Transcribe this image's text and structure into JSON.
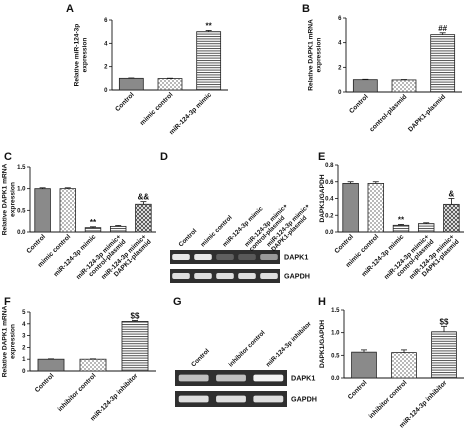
{
  "colors": {
    "bar_dark": "#8a8a8a",
    "bar_hatch": "#ffffff",
    "blot_bg": "#2f2f2f",
    "band": "#f2f2f2"
  },
  "panels": [
    {
      "id": "A",
      "label": "A"
    },
    {
      "id": "B",
      "label": "B"
    },
    {
      "id": "C",
      "label": "C"
    },
    {
      "id": "D",
      "label": "D"
    },
    {
      "id": "E",
      "label": "E"
    },
    {
      "id": "F",
      "label": "F"
    },
    {
      "id": "G",
      "label": "G"
    },
    {
      "id": "H",
      "label": "H"
    }
  ],
  "blots": {
    "D": {
      "lanes": [
        "Control",
        "mimic control",
        "miR-124-3p mimic",
        "miR-124-3p mimic+ control-plasmid",
        "miR-124-3p mimic+ DAPK1-plasmid"
      ],
      "rows": [
        {
          "label": "DAPK1",
          "intensity": [
            0.95,
            0.95,
            0.25,
            0.22,
            0.55
          ]
        },
        {
          "label": "GAPDH",
          "intensity": [
            0.9,
            0.9,
            0.9,
            0.9,
            0.9
          ]
        }
      ]
    },
    "G": {
      "lanes": [
        "Control",
        "inhibitor control",
        "miR-124-3p inhibitor"
      ],
      "rows": [
        {
          "label": "DAPK1",
          "intensity": [
            0.75,
            0.75,
            1.0
          ]
        },
        {
          "label": "GAPDH",
          "intensity": [
            0.9,
            0.9,
            0.9
          ]
        }
      ]
    }
  },
  "chart_data": [
    {
      "panel": "A",
      "type": "bar",
      "ylabel": "Relative miR-124-3p expression",
      "ylim": [
        0,
        6
      ],
      "yticks": [
        0,
        2,
        4,
        6
      ],
      "categories": [
        "Control",
        "mimic control",
        "miR-124-3p mimic"
      ],
      "values": [
        1.0,
        0.98,
        5.0
      ],
      "errors": [
        0.03,
        0.03,
        0.1
      ],
      "styles": [
        "solid",
        "check",
        "hline"
      ],
      "annotations": [
        "",
        "",
        "**"
      ]
    },
    {
      "panel": "B",
      "type": "bar",
      "ylabel": "Relative DAPK1 mRNA expression",
      "ylim": [
        0,
        6
      ],
      "yticks": [
        0,
        2,
        4,
        6
      ],
      "categories": [
        "Control",
        "control-plasmid",
        "DAPK1-plasmid"
      ],
      "values": [
        1.0,
        0.98,
        4.65
      ],
      "errors": [
        0.03,
        0.03,
        0.15
      ],
      "styles": [
        "solid",
        "check",
        "hline"
      ],
      "annotations": [
        "",
        "",
        "##"
      ]
    },
    {
      "panel": "C",
      "type": "bar",
      "ylabel": "Relative DAPK1 mRNA expression",
      "ylim": [
        0,
        1.5
      ],
      "yticks": [
        0.0,
        0.5,
        1.0,
        1.5
      ],
      "tick_decimals": 1,
      "categories": [
        "Control",
        "mimic control",
        "miR-124-3p mimic",
        "miR-124-3p mimic+ control-plasmid",
        "miR-124-3p mimic+ DAPK1-plasmid"
      ],
      "values": [
        1.0,
        1.0,
        0.1,
        0.13,
        0.64
      ],
      "errors": [
        0.02,
        0.02,
        0.02,
        0.02,
        0.06
      ],
      "styles": [
        "solid",
        "check",
        "hline",
        "hline",
        "cross"
      ],
      "annotations": [
        "",
        "",
        "**",
        "",
        "&&"
      ]
    },
    {
      "panel": "E",
      "type": "bar",
      "ylabel": "DAPK1/GAPDH",
      "ylim": [
        0,
        0.8
      ],
      "yticks": [
        0.0,
        0.2,
        0.4,
        0.6,
        0.8
      ],
      "tick_decimals": 1,
      "categories": [
        "Control",
        "mimic control",
        "miR-124-3p mimic",
        "miR-124-3p mimic+ control-plasmid",
        "miR-124-3p mimic+ DAPK1-plasmid"
      ],
      "values": [
        0.58,
        0.58,
        0.08,
        0.1,
        0.33
      ],
      "errors": [
        0.02,
        0.02,
        0.01,
        0.01,
        0.07
      ],
      "styles": [
        "solid",
        "check",
        "hline",
        "hline",
        "cross"
      ],
      "annotations": [
        "",
        "",
        "**",
        "",
        "&"
      ]
    },
    {
      "panel": "F",
      "type": "bar",
      "ylabel": "Relative DAPK1 mRNA expression",
      "ylim": [
        0,
        5
      ],
      "yticks": [
        0,
        1,
        2,
        3,
        4,
        5
      ],
      "categories": [
        "Control",
        "inhibitor control",
        "miR-124-3p inhibitor"
      ],
      "values": [
        1.0,
        1.0,
        4.2
      ],
      "errors": [
        0.03,
        0.03,
        0.08
      ],
      "styles": [
        "solid",
        "check",
        "hline"
      ],
      "annotations": [
        "",
        "",
        "$$"
      ]
    },
    {
      "panel": "H",
      "type": "bar",
      "ylabel": "DAPK1/GAPDH",
      "ylim": [
        0,
        1.5
      ],
      "yticks": [
        0.0,
        0.5,
        1.0,
        1.5
      ],
      "tick_decimals": 1,
      "categories": [
        "Control",
        "inhibitor control",
        "miR-124-3p inhibitor"
      ],
      "values": [
        0.57,
        0.56,
        1.02
      ],
      "errors": [
        0.05,
        0.06,
        0.12
      ],
      "styles": [
        "solid",
        "check",
        "hline"
      ],
      "annotations": [
        "",
        "",
        "$$"
      ]
    }
  ]
}
